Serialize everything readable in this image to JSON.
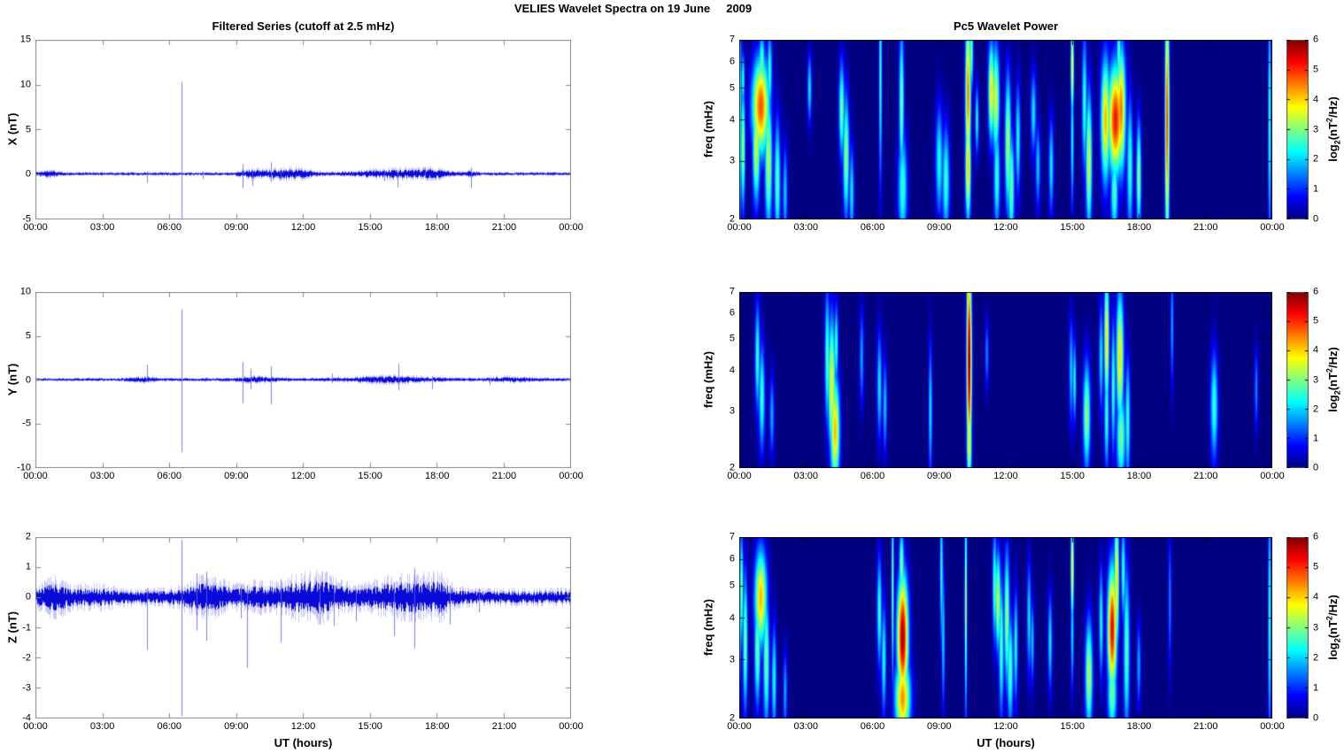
{
  "figure_title": "VELIES Wavelet Spectra on 19 June     2009",
  "left_column": {
    "title": "Filtered Series (cutoff at 2.5 mHz)",
    "xlabel": "UT (hours)"
  },
  "right_column": {
    "title": "Pc5 Wavelet Power",
    "xlabel": "UT (hours)"
  },
  "colorbar_label": {
    "a": "log",
    "b": "2",
    "c": "(nT",
    "d": "2",
    "e": "/Hz)"
  },
  "time_axis": {
    "labels": [
      "00:00",
      "03:00",
      "06:00",
      "09:00",
      "12:00",
      "15:00",
      "18:00",
      "21:00",
      "00:00"
    ],
    "hours": [
      0,
      3,
      6,
      9,
      12,
      15,
      18,
      21,
      24
    ]
  },
  "chart_data": [
    {
      "id": "ts_x",
      "type": "line",
      "ylabel": "X (nT)",
      "ylim": [
        -5,
        15
      ],
      "yticks": [
        15,
        10,
        5,
        0,
        -5
      ],
      "xlim_hours": [
        0,
        24
      ],
      "line_color": "#0000cc",
      "seed": 11,
      "noise_base": 0.12,
      "bursts": [
        [
          0.6,
          0.35,
          0.18
        ],
        [
          9.6,
          0.4,
          0.15
        ],
        [
          10.9,
          0.8,
          0.28
        ],
        [
          11.9,
          0.5,
          0.18
        ],
        [
          16.2,
          1.3,
          0.28
        ],
        [
          17.9,
          0.5,
          0.18
        ],
        [
          19.5,
          0.25,
          0.12
        ]
      ],
      "spikes": [
        [
          5.0,
          0.3,
          -1.0
        ],
        [
          6.55,
          10.3,
          -5.0
        ],
        [
          7.5,
          0.25,
          -0.6
        ],
        [
          9.3,
          1.1,
          -1.6
        ],
        [
          9.75,
          0.5,
          -1.3
        ],
        [
          10.55,
          1.3,
          -0.9
        ],
        [
          11.0,
          0.4,
          -0.7
        ],
        [
          15.65,
          0.4,
          -0.8
        ],
        [
          16.25,
          0.4,
          -1.5
        ],
        [
          17.5,
          0.6,
          -0.5
        ],
        [
          19.55,
          0.7,
          -1.6
        ]
      ]
    },
    {
      "id": "ts_y",
      "type": "line",
      "ylabel": "Y (nT)",
      "ylim": [
        -10,
        10
      ],
      "yticks": [
        10,
        5,
        0,
        -5,
        -10
      ],
      "xlim_hours": [
        0,
        24
      ],
      "line_color": "#0000cc",
      "seed": 22,
      "noise_base": 0.12,
      "bursts": [
        [
          4.8,
          0.4,
          0.15
        ],
        [
          9.9,
          0.7,
          0.15
        ],
        [
          15.9,
          1.4,
          0.2
        ],
        [
          21.3,
          0.8,
          0.12
        ]
      ],
      "spikes": [
        [
          5.0,
          1.7,
          -0.3
        ],
        [
          6.55,
          8.0,
          -8.3
        ],
        [
          9.3,
          2.0,
          -2.7
        ],
        [
          9.65,
          1.2,
          -1.1
        ],
        [
          10.55,
          1.5,
          -2.8
        ],
        [
          13.3,
          0.7,
          -0.4
        ],
        [
          16.3,
          1.8,
          -1.2
        ],
        [
          17.8,
          0.4,
          -1.1
        ],
        [
          20.4,
          0.3,
          -0.6
        ]
      ]
    },
    {
      "id": "ts_z",
      "type": "line",
      "ylabel": "Z (nT)",
      "ylim": [
        -4,
        2
      ],
      "yticks": [
        2,
        1,
        0,
        -1,
        -2,
        -3,
        -4
      ],
      "xlim_hours": [
        0,
        24
      ],
      "line_color": "#0000cc",
      "seed": 33,
      "noise_base": 0.16,
      "bursts": [
        [
          0.8,
          0.45,
          0.22
        ],
        [
          2.6,
          0.8,
          0.08
        ],
        [
          7.7,
          0.8,
          0.22
        ],
        [
          9.9,
          0.5,
          0.12
        ],
        [
          11.9,
          0.9,
          0.22
        ],
        [
          13.1,
          0.8,
          0.16
        ],
        [
          16.6,
          1.2,
          0.26
        ],
        [
          18.0,
          0.4,
          0.16
        ]
      ],
      "spikes": [
        [
          5.0,
          0.3,
          -1.75
        ],
        [
          6.55,
          1.9,
          -3.95
        ],
        [
          7.25,
          0.8,
          -1.1
        ],
        [
          7.65,
          0.85,
          -1.45
        ],
        [
          9.2,
          0.4,
          -0.7
        ],
        [
          9.5,
          0.4,
          -2.35
        ],
        [
          11.0,
          0.6,
          -1.5
        ],
        [
          12.75,
          0.4,
          -0.9
        ],
        [
          13.4,
          0.4,
          -0.95
        ],
        [
          14.4,
          0.3,
          -0.8
        ],
        [
          16.1,
          0.5,
          -1.3
        ],
        [
          17.0,
          0.95,
          -1.7
        ],
        [
          18.6,
          0.4,
          -0.9
        ],
        [
          19.9,
          0.3,
          -0.5
        ]
      ]
    },
    {
      "id": "spec_x",
      "type": "heatmap",
      "ylabel": "freq (mHz)",
      "ylim": [
        2,
        7
      ],
      "yscale": "log",
      "yticks": [
        7,
        6,
        5,
        4,
        3,
        2
      ],
      "clim": [
        0,
        6
      ],
      "colorbar_ticks": [
        0,
        1,
        2,
        3,
        4,
        5,
        6
      ],
      "colormap": "jet",
      "background_value_color": "#000080",
      "blobs": [
        [
          0.02,
          4.0,
          0.05,
          0.8,
          2.8
        ],
        [
          0.15,
          3.3,
          0.07,
          0.45,
          3.2
        ],
        [
          0.15,
          5.3,
          0.06,
          0.2,
          2.5
        ],
        [
          0.75,
          3.3,
          0.12,
          0.4,
          3.6
        ],
        [
          0.95,
          4.4,
          0.28,
          0.35,
          4.8
        ],
        [
          1.0,
          5.8,
          0.1,
          0.25,
          3.0
        ],
        [
          1.3,
          3.0,
          0.12,
          0.5,
          3.4
        ],
        [
          1.35,
          5.6,
          0.08,
          0.3,
          2.6
        ],
        [
          1.7,
          2.6,
          0.1,
          0.45,
          2.8
        ],
        [
          2.05,
          2.4,
          0.08,
          0.35,
          2.0
        ],
        [
          3.15,
          5.0,
          0.07,
          0.25,
          2.2
        ],
        [
          4.6,
          4.3,
          0.09,
          0.35,
          3.0
        ],
        [
          4.8,
          3.1,
          0.1,
          0.45,
          3.2
        ],
        [
          5.05,
          2.4,
          0.08,
          0.35,
          2.2
        ],
        [
          6.35,
          5.5,
          0.05,
          0.8,
          2.6
        ],
        [
          7.3,
          4.5,
          0.08,
          0.55,
          3.0
        ],
        [
          7.35,
          2.5,
          0.15,
          0.4,
          2.6
        ],
        [
          9.0,
          3.0,
          0.12,
          0.4,
          2.4
        ],
        [
          9.3,
          2.6,
          0.12,
          0.4,
          2.6
        ],
        [
          10.3,
          4.8,
          0.09,
          0.6,
          4.6
        ],
        [
          10.3,
          2.9,
          0.09,
          0.4,
          4.2
        ],
        [
          10.45,
          6.5,
          0.06,
          0.3,
          3.0
        ],
        [
          10.7,
          4.0,
          0.06,
          0.25,
          2.4
        ],
        [
          11.35,
          4.9,
          0.1,
          0.35,
          4.0
        ],
        [
          11.55,
          4.6,
          0.12,
          0.4,
          3.6
        ],
        [
          11.6,
          2.7,
          0.1,
          0.4,
          2.6
        ],
        [
          12.1,
          3.4,
          0.1,
          0.5,
          3.4
        ],
        [
          12.25,
          2.5,
          0.1,
          0.4,
          3.0
        ],
        [
          12.55,
          3.5,
          0.08,
          0.4,
          2.4
        ],
        [
          13.25,
          4.2,
          0.09,
          0.3,
          2.2
        ],
        [
          13.45,
          2.9,
          0.08,
          0.3,
          2.0
        ],
        [
          14.05,
          2.9,
          0.08,
          0.35,
          2.2
        ],
        [
          15.0,
          5.8,
          0.05,
          0.35,
          4.0
        ],
        [
          15.0,
          3.5,
          0.05,
          0.5,
          2.4
        ],
        [
          15.55,
          4.5,
          0.08,
          0.5,
          2.6
        ],
        [
          15.75,
          3.0,
          0.1,
          0.5,
          3.6
        ],
        [
          16.5,
          4.0,
          0.15,
          0.45,
          4.2
        ],
        [
          16.95,
          4.0,
          0.25,
          0.4,
          5.2
        ],
        [
          17.2,
          4.3,
          0.15,
          0.45,
          4.6
        ],
        [
          17.1,
          6.3,
          0.07,
          0.3,
          2.8
        ],
        [
          16.9,
          2.4,
          0.12,
          0.3,
          2.8
        ],
        [
          17.6,
          2.9,
          0.1,
          0.5,
          2.6
        ],
        [
          18.0,
          2.7,
          0.08,
          0.4,
          3.2
        ],
        [
          19.28,
          4.0,
          0.07,
          0.95,
          5.0
        ],
        [
          23.9,
          4.0,
          0.05,
          0.9,
          2.6
        ]
      ]
    },
    {
      "id": "spec_y",
      "type": "heatmap",
      "ylabel": "freq (mHz)",
      "ylim": [
        2,
        7
      ],
      "yscale": "log",
      "yticks": [
        7,
        6,
        5,
        4,
        3,
        2
      ],
      "clim": [
        0,
        6
      ],
      "colorbar_ticks": [
        0,
        1,
        2,
        3,
        4,
        5,
        6
      ],
      "colormap": "jet",
      "background_value_color": "#000080",
      "blobs": [
        [
          0.8,
          4.4,
          0.08,
          0.4,
          2.6
        ],
        [
          1.0,
          3.3,
          0.1,
          0.4,
          2.6
        ],
        [
          1.45,
          2.9,
          0.08,
          0.3,
          1.8
        ],
        [
          3.95,
          4.4,
          0.08,
          0.5,
          2.8
        ],
        [
          4.15,
          3.6,
          0.12,
          0.5,
          3.8
        ],
        [
          4.3,
          2.6,
          0.15,
          0.4,
          4.2
        ],
        [
          4.35,
          4.8,
          0.07,
          0.3,
          2.6
        ],
        [
          5.5,
          4.4,
          0.07,
          0.35,
          1.8
        ],
        [
          6.3,
          3.6,
          0.08,
          0.4,
          2.2
        ],
        [
          6.55,
          3.1,
          0.07,
          0.35,
          2.0
        ],
        [
          8.6,
          3.0,
          0.06,
          0.5,
          2.2
        ],
        [
          10.35,
          4.3,
          0.08,
          0.75,
          6.0
        ],
        [
          10.35,
          2.4,
          0.08,
          0.3,
          4.0
        ],
        [
          10.3,
          6.8,
          0.05,
          0.15,
          4.0
        ],
        [
          11.15,
          4.5,
          0.06,
          0.25,
          1.6
        ],
        [
          14.95,
          4.0,
          0.07,
          0.4,
          2.0
        ],
        [
          15.1,
          3.7,
          0.06,
          0.3,
          2.4
        ],
        [
          15.65,
          2.9,
          0.12,
          0.4,
          3.2
        ],
        [
          16.3,
          4.4,
          0.07,
          0.4,
          2.2
        ],
        [
          16.55,
          5.0,
          0.08,
          0.5,
          4.0
        ],
        [
          16.55,
          2.9,
          0.08,
          0.4,
          2.6
        ],
        [
          16.85,
          3.6,
          0.07,
          0.5,
          2.6
        ],
        [
          17.15,
          4.4,
          0.12,
          0.5,
          4.0
        ],
        [
          17.2,
          2.5,
          0.15,
          0.35,
          3.0
        ],
        [
          17.5,
          2.8,
          0.08,
          0.45,
          2.6
        ],
        [
          19.5,
          5.5,
          0.05,
          0.45,
          1.8
        ],
        [
          21.4,
          3.1,
          0.12,
          0.4,
          2.6
        ],
        [
          23.3,
          3.5,
          0.06,
          0.3,
          1.6
        ]
      ]
    },
    {
      "id": "spec_z",
      "type": "heatmap",
      "ylabel": "freq (mHz)",
      "ylim": [
        2,
        7
      ],
      "yscale": "log",
      "yticks": [
        7,
        6,
        5,
        4,
        3,
        2
      ],
      "clim": [
        0,
        6
      ],
      "colorbar_ticks": [
        0,
        1,
        2,
        3,
        4,
        5,
        6
      ],
      "colormap": "jet",
      "background_value_color": "#000080",
      "blobs": [
        [
          0.02,
          4.5,
          0.05,
          0.6,
          2.5
        ],
        [
          0.08,
          4.9,
          0.06,
          0.4,
          3.0
        ],
        [
          0.25,
          3.4,
          0.08,
          0.5,
          3.0
        ],
        [
          0.8,
          3.2,
          0.1,
          0.4,
          3.0
        ],
        [
          0.95,
          4.6,
          0.2,
          0.35,
          4.2
        ],
        [
          1.2,
          3.0,
          0.1,
          0.5,
          3.0
        ],
        [
          1.55,
          2.6,
          0.08,
          0.4,
          2.4
        ],
        [
          2.05,
          2.4,
          0.07,
          0.3,
          1.8
        ],
        [
          6.3,
          4.2,
          0.08,
          0.4,
          2.6
        ],
        [
          6.5,
          3.0,
          0.08,
          0.4,
          2.4
        ],
        [
          6.9,
          5.0,
          0.04,
          0.7,
          3.0
        ],
        [
          7.35,
          3.5,
          0.18,
          0.45,
          5.8
        ],
        [
          7.35,
          2.3,
          0.25,
          0.3,
          4.4
        ],
        [
          7.3,
          5.8,
          0.08,
          0.25,
          3.2
        ],
        [
          9.1,
          5.5,
          0.05,
          0.5,
          2.6
        ],
        [
          9.18,
          3.5,
          0.05,
          0.5,
          2.2
        ],
        [
          10.2,
          4.5,
          0.04,
          0.8,
          3.4
        ],
        [
          11.5,
          5.0,
          0.07,
          0.4,
          2.8
        ],
        [
          11.65,
          4.5,
          0.09,
          0.35,
          3.6
        ],
        [
          11.8,
          3.3,
          0.08,
          0.5,
          2.8
        ],
        [
          12.05,
          4.0,
          0.09,
          0.5,
          3.2
        ],
        [
          12.2,
          2.8,
          0.1,
          0.4,
          2.8
        ],
        [
          12.45,
          3.3,
          0.07,
          0.4,
          2.4
        ],
        [
          13.05,
          4.0,
          0.07,
          0.4,
          2.2
        ],
        [
          13.2,
          3.4,
          0.06,
          0.3,
          2.0
        ],
        [
          14.0,
          3.4,
          0.07,
          0.35,
          2.2
        ],
        [
          15.0,
          5.7,
          0.05,
          0.4,
          4.0
        ],
        [
          15.0,
          3.6,
          0.05,
          0.4,
          2.2
        ],
        [
          15.75,
          2.7,
          0.12,
          0.4,
          3.4
        ],
        [
          16.3,
          3.9,
          0.07,
          0.4,
          2.4
        ],
        [
          16.8,
          3.7,
          0.15,
          0.45,
          5.4
        ],
        [
          16.8,
          2.4,
          0.15,
          0.3,
          3.0
        ],
        [
          17.0,
          5.2,
          0.08,
          0.5,
          4.0
        ],
        [
          17.3,
          5.5,
          0.07,
          0.35,
          2.6
        ],
        [
          17.45,
          3.2,
          0.1,
          0.6,
          2.8
        ],
        [
          18.0,
          2.9,
          0.07,
          0.3,
          1.8
        ],
        [
          19.4,
          4.5,
          0.05,
          0.5,
          1.6
        ],
        [
          23.9,
          4.0,
          0.05,
          0.9,
          2.6
        ]
      ]
    }
  ]
}
